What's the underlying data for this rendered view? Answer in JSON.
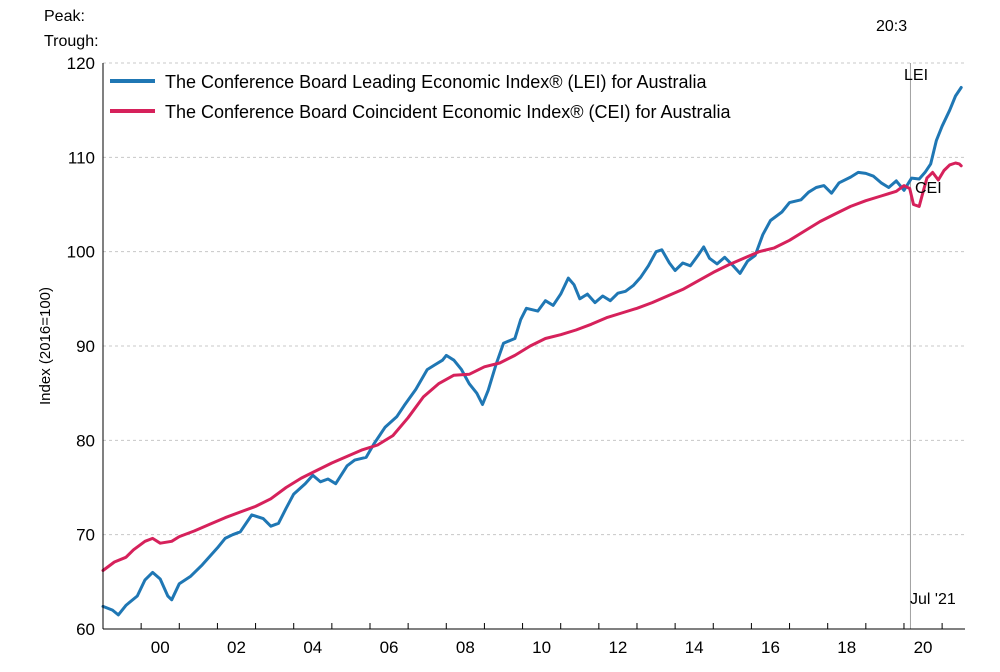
{
  "header": {
    "peak_label": "Peak:",
    "trough_label": "Trough:",
    "peak_date": "20:3"
  },
  "chart_data": {
    "type": "line",
    "title": "",
    "xlabel": "",
    "ylabel": "Index (2016=100)",
    "ylim": [
      60,
      120
    ],
    "yticks": [
      60,
      70,
      80,
      90,
      100,
      110,
      120
    ],
    "xlim": [
      1999.0,
      2021.6
    ],
    "xticks": [
      {
        "value": 2000,
        "label": "00"
      },
      {
        "value": 2002,
        "label": "02"
      },
      {
        "value": 2004,
        "label": "04"
      },
      {
        "value": 2006,
        "label": "06"
      },
      {
        "value": 2008,
        "label": "08"
      },
      {
        "value": 2010,
        "label": "10"
      },
      {
        "value": 2012,
        "label": "12"
      },
      {
        "value": 2014,
        "label": "14"
      },
      {
        "value": 2016,
        "label": "16"
      },
      {
        "value": 2018,
        "label": "18"
      },
      {
        "value": 2020,
        "label": "20"
      }
    ],
    "grid": true,
    "legend_position": "top-left",
    "recession_marker": {
      "x": 2020.17,
      "label": "20:3"
    },
    "end_label": "Jul '21",
    "series": [
      {
        "name": "The Conference Board Leading Economic Index®  (LEI) for Australia",
        "end_label": "LEI",
        "color": "#1f77b4",
        "points": [
          [
            1999.0,
            62.4
          ],
          [
            1999.25,
            62.0
          ],
          [
            1999.4,
            61.5
          ],
          [
            1999.6,
            62.5
          ],
          [
            1999.9,
            63.5
          ],
          [
            2000.1,
            65.2
          ],
          [
            2000.3,
            66.0
          ],
          [
            2000.5,
            65.3
          ],
          [
            2000.7,
            63.5
          ],
          [
            2000.8,
            63.1
          ],
          [
            2001.0,
            64.8
          ],
          [
            2001.3,
            65.6
          ],
          [
            2001.6,
            66.8
          ],
          [
            2002.0,
            68.6
          ],
          [
            2002.2,
            69.6
          ],
          [
            2002.4,
            70.0
          ],
          [
            2002.6,
            70.3
          ],
          [
            2002.9,
            72.1
          ],
          [
            2003.2,
            71.7
          ],
          [
            2003.4,
            70.9
          ],
          [
            2003.6,
            71.2
          ],
          [
            2003.8,
            72.8
          ],
          [
            2004.0,
            74.3
          ],
          [
            2004.3,
            75.4
          ],
          [
            2004.5,
            76.3
          ],
          [
            2004.7,
            75.6
          ],
          [
            2004.9,
            75.9
          ],
          [
            2005.1,
            75.4
          ],
          [
            2005.4,
            77.3
          ],
          [
            2005.6,
            77.9
          ],
          [
            2005.9,
            78.2
          ],
          [
            2006.1,
            79.6
          ],
          [
            2006.4,
            81.4
          ],
          [
            2006.7,
            82.5
          ],
          [
            2006.9,
            83.7
          ],
          [
            2007.2,
            85.4
          ],
          [
            2007.5,
            87.5
          ],
          [
            2007.7,
            88.0
          ],
          [
            2007.9,
            88.5
          ],
          [
            2008.0,
            89.0
          ],
          [
            2008.2,
            88.5
          ],
          [
            2008.4,
            87.5
          ],
          [
            2008.6,
            86.0
          ],
          [
            2008.8,
            85.0
          ],
          [
            2008.95,
            83.8
          ],
          [
            2009.1,
            85.3
          ],
          [
            2009.3,
            88.0
          ],
          [
            2009.5,
            90.3
          ],
          [
            2009.8,
            90.8
          ],
          [
            2009.95,
            92.8
          ],
          [
            2010.1,
            94.0
          ],
          [
            2010.4,
            93.7
          ],
          [
            2010.6,
            94.8
          ],
          [
            2010.8,
            94.3
          ],
          [
            2011.0,
            95.5
          ],
          [
            2011.2,
            97.2
          ],
          [
            2011.35,
            96.5
          ],
          [
            2011.5,
            95.0
          ],
          [
            2011.7,
            95.5
          ],
          [
            2011.9,
            94.6
          ],
          [
            2012.1,
            95.3
          ],
          [
            2012.3,
            94.8
          ],
          [
            2012.5,
            95.6
          ],
          [
            2012.7,
            95.8
          ],
          [
            2012.9,
            96.4
          ],
          [
            2013.1,
            97.3
          ],
          [
            2013.3,
            98.5
          ],
          [
            2013.5,
            100.0
          ],
          [
            2013.65,
            100.2
          ],
          [
            2013.85,
            98.8
          ],
          [
            2014.0,
            98.0
          ],
          [
            2014.2,
            98.8
          ],
          [
            2014.4,
            98.5
          ],
          [
            2014.6,
            99.6
          ],
          [
            2014.75,
            100.5
          ],
          [
            2014.9,
            99.3
          ],
          [
            2015.1,
            98.7
          ],
          [
            2015.3,
            99.4
          ],
          [
            2015.5,
            98.6
          ],
          [
            2015.7,
            97.7
          ],
          [
            2015.9,
            99.0
          ],
          [
            2016.1,
            99.6
          ],
          [
            2016.3,
            101.8
          ],
          [
            2016.5,
            103.3
          ],
          [
            2016.8,
            104.2
          ],
          [
            2017.0,
            105.2
          ],
          [
            2017.3,
            105.5
          ],
          [
            2017.5,
            106.3
          ],
          [
            2017.7,
            106.8
          ],
          [
            2017.9,
            107.0
          ],
          [
            2018.1,
            106.2
          ],
          [
            2018.3,
            107.3
          ],
          [
            2018.6,
            107.9
          ],
          [
            2018.8,
            108.4
          ],
          [
            2019.0,
            108.3
          ],
          [
            2019.2,
            108.0
          ],
          [
            2019.4,
            107.3
          ],
          [
            2019.6,
            106.8
          ],
          [
            2019.8,
            107.5
          ],
          [
            2020.0,
            106.5
          ],
          [
            2020.2,
            107.8
          ],
          [
            2020.4,
            107.7
          ],
          [
            2020.55,
            108.4
          ],
          [
            2020.7,
            109.3
          ],
          [
            2020.85,
            111.8
          ],
          [
            2021.0,
            113.3
          ],
          [
            2021.2,
            115.0
          ],
          [
            2021.35,
            116.5
          ],
          [
            2021.5,
            117.4
          ]
        ]
      },
      {
        "name": "The Conference Board Coincident Economic Index®  (CEI) for Australia",
        "end_label": "CEI",
        "color": "#d6215b",
        "points": [
          [
            1999.0,
            66.2
          ],
          [
            1999.3,
            67.1
          ],
          [
            1999.6,
            67.6
          ],
          [
            1999.8,
            68.4
          ],
          [
            2000.1,
            69.3
          ],
          [
            2000.3,
            69.6
          ],
          [
            2000.5,
            69.1
          ],
          [
            2000.8,
            69.3
          ],
          [
            2001.0,
            69.8
          ],
          [
            2001.4,
            70.4
          ],
          [
            2001.8,
            71.1
          ],
          [
            2002.2,
            71.8
          ],
          [
            2002.6,
            72.4
          ],
          [
            2003.0,
            73.0
          ],
          [
            2003.4,
            73.8
          ],
          [
            2003.8,
            75.0
          ],
          [
            2004.2,
            76.0
          ],
          [
            2004.6,
            76.8
          ],
          [
            2005.0,
            77.6
          ],
          [
            2005.4,
            78.3
          ],
          [
            2005.8,
            79.0
          ],
          [
            2006.2,
            79.5
          ],
          [
            2006.6,
            80.5
          ],
          [
            2007.0,
            82.4
          ],
          [
            2007.4,
            84.6
          ],
          [
            2007.8,
            86.0
          ],
          [
            2008.2,
            86.9
          ],
          [
            2008.6,
            87.0
          ],
          [
            2009.0,
            87.8
          ],
          [
            2009.4,
            88.2
          ],
          [
            2009.8,
            89.0
          ],
          [
            2010.2,
            90.0
          ],
          [
            2010.6,
            90.8
          ],
          [
            2011.0,
            91.2
          ],
          [
            2011.4,
            91.7
          ],
          [
            2011.8,
            92.3
          ],
          [
            2012.2,
            93.0
          ],
          [
            2012.6,
            93.5
          ],
          [
            2013.0,
            94.0
          ],
          [
            2013.4,
            94.6
          ],
          [
            2013.8,
            95.3
          ],
          [
            2014.2,
            96.0
          ],
          [
            2014.6,
            96.9
          ],
          [
            2015.0,
            97.8
          ],
          [
            2015.4,
            98.6
          ],
          [
            2015.8,
            99.3
          ],
          [
            2016.2,
            100.0
          ],
          [
            2016.6,
            100.4
          ],
          [
            2017.0,
            101.2
          ],
          [
            2017.4,
            102.2
          ],
          [
            2017.8,
            103.2
          ],
          [
            2018.2,
            104.0
          ],
          [
            2018.6,
            104.8
          ],
          [
            2019.0,
            105.4
          ],
          [
            2019.4,
            105.9
          ],
          [
            2019.8,
            106.4
          ],
          [
            2020.0,
            107.0
          ],
          [
            2020.15,
            106.7
          ],
          [
            2020.25,
            105.0
          ],
          [
            2020.4,
            104.8
          ],
          [
            2020.5,
            106.3
          ],
          [
            2020.6,
            107.8
          ],
          [
            2020.75,
            108.4
          ],
          [
            2020.9,
            107.6
          ],
          [
            2021.05,
            108.6
          ],
          [
            2021.2,
            109.2
          ],
          [
            2021.35,
            109.4
          ],
          [
            2021.45,
            109.3
          ],
          [
            2021.5,
            109.1
          ]
        ]
      }
    ]
  }
}
